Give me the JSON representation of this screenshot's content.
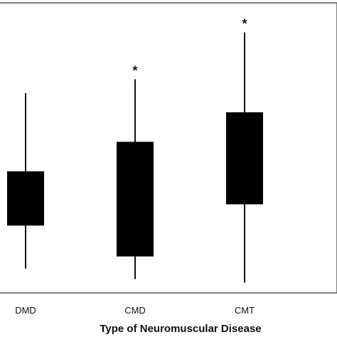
{
  "chart_data": {
    "type": "box",
    "xlabel": "Type of Neuromuscular Disease",
    "categories": [
      "DMD",
      "CMD",
      "CMT"
    ],
    "boxes": [
      {
        "category": "DMD",
        "whisker_low": 12,
        "q1": 37,
        "median": 37,
        "q3": 68,
        "whisker_high": 113,
        "outlier_marker": ""
      },
      {
        "category": "CMD",
        "whisker_low": 6,
        "q1": 19,
        "median": 56,
        "q3": 85,
        "whisker_high": 121,
        "outlier_marker": "*"
      },
      {
        "category": "CMT",
        "whisker_low": 4,
        "q1": 49,
        "median": 74,
        "q3": 102,
        "whisker_high": 148,
        "outlier_marker": "*"
      }
    ],
    "ylim": [
      -2,
      165
    ]
  }
}
